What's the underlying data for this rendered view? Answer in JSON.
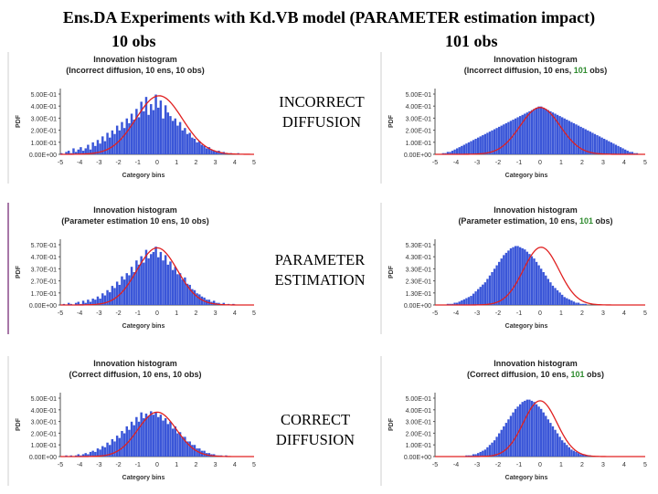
{
  "slide": {
    "title": "Ens.DA Experiments with Kd.VB model (PARAMETER estimation impact)",
    "left_column": "10 obs",
    "right_column": "101 obs"
  },
  "rows": [
    {
      "label_line1": "INCORRECT",
      "label_line2": "DIFFUSION"
    },
    {
      "label_line1": "PARAMETER",
      "label_line2": "ESTIMATION"
    },
    {
      "label_line1": "CORRECT",
      "label_line2": "DIFFUSION"
    }
  ],
  "colors": {
    "bar": "#3a56d8",
    "curve": "#e02020",
    "highlight_green": "#2e8b2e",
    "axis": "#555555"
  },
  "chart_data": [
    {
      "id": "p1",
      "type": "bar",
      "title": "Innovation histogram",
      "subtitle_parts": [
        "(Incorrect diffusion, 10 ens, 10 obs)"
      ],
      "xlabel": "Category bins",
      "ylabel": "PDF",
      "xticks": [
        "-5",
        "-4",
        "-3",
        "-2",
        "-1",
        "0",
        "1",
        "2",
        "3",
        "4",
        "5"
      ],
      "yticks": [
        "0.00E+00",
        "1.00E-01",
        "2.00E-01",
        "3.00E-01",
        "4.00E-01",
        "5.00E-01"
      ],
      "ylim": [
        0,
        0.55
      ],
      "xlim": [
        -5,
        5
      ],
      "curve": {
        "mean": 0.1,
        "sd": 1.2
      },
      "n_bars": 80,
      "seed": 11,
      "values": [
        0.01,
        0.0,
        0.02,
        0.03,
        0.01,
        0.05,
        0.02,
        0.04,
        0.06,
        0.03,
        0.05,
        0.08,
        0.04,
        0.1,
        0.07,
        0.12,
        0.09,
        0.15,
        0.11,
        0.18,
        0.14,
        0.2,
        0.17,
        0.24,
        0.2,
        0.27,
        0.22,
        0.3,
        0.26,
        0.34,
        0.29,
        0.38,
        0.31,
        0.44,
        0.36,
        0.48,
        0.33,
        0.42,
        0.37,
        0.5,
        0.39,
        0.45,
        0.3,
        0.41,
        0.35,
        0.32,
        0.28,
        0.3,
        0.24,
        0.27,
        0.2,
        0.22,
        0.17,
        0.18,
        0.14,
        0.13,
        0.1,
        0.11,
        0.08,
        0.07,
        0.05,
        0.06,
        0.04,
        0.03,
        0.02,
        0.03,
        0.01,
        0.02,
        0.01,
        0.0,
        0.01,
        0.0,
        0.0,
        0.01,
        0.0,
        0.0,
        0.0,
        0.0,
        0.0,
        0.0
      ]
    },
    {
      "id": "p2",
      "type": "bar",
      "title": "Innovation histogram",
      "subtitle_parts": [
        "(Incorrect diffusion, 10 ens, ",
        "101",
        " obs)"
      ],
      "xlabel": "Category bins",
      "ylabel": "PDF",
      "xticks": [
        "-5",
        "-4",
        "-3",
        "-2",
        "-1",
        "0",
        "1",
        "2",
        "3",
        "4",
        "5"
      ],
      "yticks": [
        "0.00E+00",
        "1.00E-01",
        "2.00E-01",
        "3.00E-01",
        "4.00E-01",
        "5.00E-01"
      ],
      "ylim": [
        0,
        0.55
      ],
      "xlim": [
        -5,
        5
      ],
      "curve": {
        "mean": 0.0,
        "sd": 0.95
      },
      "n_bars": 90,
      "seed": 23,
      "values": [
        0.0,
        0.0,
        0.0,
        0.01,
        0.01,
        0.02,
        0.02,
        0.03,
        0.04,
        0.05,
        0.06,
        0.07,
        0.08,
        0.09,
        0.1,
        0.11,
        0.12,
        0.13,
        0.14,
        0.15,
        0.16,
        0.17,
        0.18,
        0.19,
        0.2,
        0.21,
        0.22,
        0.23,
        0.24,
        0.25,
        0.26,
        0.27,
        0.28,
        0.29,
        0.3,
        0.31,
        0.32,
        0.33,
        0.34,
        0.35,
        0.36,
        0.37,
        0.38,
        0.39,
        0.4,
        0.4,
        0.39,
        0.38,
        0.37,
        0.36,
        0.35,
        0.34,
        0.33,
        0.32,
        0.31,
        0.3,
        0.29,
        0.28,
        0.27,
        0.26,
        0.25,
        0.24,
        0.23,
        0.22,
        0.21,
        0.2,
        0.19,
        0.18,
        0.17,
        0.16,
        0.15,
        0.14,
        0.13,
        0.12,
        0.11,
        0.1,
        0.09,
        0.08,
        0.07,
        0.06,
        0.05,
        0.04,
        0.03,
        0.02,
        0.02,
        0.01,
        0.01,
        0.0,
        0.0,
        0.0
      ]
    },
    {
      "id": "p3",
      "type": "bar",
      "title": "Innovation histogram",
      "subtitle_parts": [
        "(Parameter estimation 10 ens, 10 obs)"
      ],
      "xlabel": "Category bins",
      "ylabel": "PDF",
      "xticks": [
        "-5",
        "-4",
        "-3",
        "-2",
        "-1",
        "0",
        "1",
        "2",
        "3",
        "4",
        "5"
      ],
      "yticks": [
        "0.00E+00",
        "1.70E-01",
        "2.70E-01",
        "3.70E-01",
        "4.70E-01",
        "5.70E-01"
      ],
      "ylim": [
        0,
        0.62
      ],
      "xlim": [
        -5,
        5
      ],
      "curve": {
        "mean": 0.0,
        "sd": 1.05
      },
      "n_bars": 80,
      "seed": 37,
      "values": [
        0.0,
        0.01,
        0.0,
        0.02,
        0.01,
        0.0,
        0.02,
        0.03,
        0.01,
        0.04,
        0.02,
        0.05,
        0.03,
        0.06,
        0.05,
        0.08,
        0.06,
        0.11,
        0.09,
        0.14,
        0.12,
        0.18,
        0.16,
        0.22,
        0.19,
        0.27,
        0.24,
        0.3,
        0.28,
        0.36,
        0.31,
        0.42,
        0.38,
        0.46,
        0.4,
        0.52,
        0.44,
        0.48,
        0.5,
        0.55,
        0.45,
        0.5,
        0.42,
        0.47,
        0.38,
        0.41,
        0.33,
        0.36,
        0.29,
        0.3,
        0.24,
        0.26,
        0.2,
        0.19,
        0.15,
        0.14,
        0.11,
        0.1,
        0.08,
        0.07,
        0.05,
        0.05,
        0.03,
        0.04,
        0.02,
        0.02,
        0.01,
        0.02,
        0.0,
        0.01,
        0.0,
        0.01,
        0.0,
        0.0,
        0.0,
        0.0,
        0.0,
        0.0,
        0.0,
        0.0
      ]
    },
    {
      "id": "p4",
      "type": "bar",
      "title": "Innovation histogram",
      "subtitle_parts": [
        "(Parameter estimation",
        ", 10 ens, ",
        "101",
        " obs)"
      ],
      "xlabel": "Category bins",
      "ylabel": "PDF",
      "xticks": [
        "-5",
        "-4",
        "-3",
        "-2",
        "-1",
        "0",
        "1",
        "2",
        "3",
        "4",
        "5"
      ],
      "yticks": [
        "0.00E+00",
        "1.30E-01",
        "2.30E-01",
        "3.30E-01",
        "4.30E-01",
        "5.30E-01"
      ],
      "ylim": [
        0,
        0.58
      ],
      "xlim": [
        -5,
        5
      ],
      "curve": {
        "mean": 0.05,
        "sd": 0.85
      },
      "n_bars": 90,
      "seed": 51,
      "values": [
        0.0,
        0.0,
        0.0,
        0.0,
        0.0,
        0.01,
        0.01,
        0.01,
        0.02,
        0.02,
        0.03,
        0.04,
        0.05,
        0.06,
        0.07,
        0.08,
        0.1,
        0.12,
        0.14,
        0.16,
        0.18,
        0.2,
        0.23,
        0.26,
        0.29,
        0.32,
        0.35,
        0.38,
        0.41,
        0.44,
        0.46,
        0.48,
        0.5,
        0.51,
        0.52,
        0.52,
        0.51,
        0.5,
        0.49,
        0.47,
        0.45,
        0.43,
        0.41,
        0.38,
        0.35,
        0.32,
        0.29,
        0.26,
        0.23,
        0.2,
        0.17,
        0.15,
        0.13,
        0.11,
        0.09,
        0.07,
        0.06,
        0.05,
        0.04,
        0.03,
        0.02,
        0.02,
        0.01,
        0.01,
        0.01,
        0.0,
        0.0,
        0.0,
        0.0,
        0.0,
        0.0,
        0.0,
        0.0,
        0.0,
        0.0,
        0.0,
        0.0,
        0.0,
        0.0,
        0.0,
        0.0,
        0.0,
        0.0,
        0.0,
        0.0,
        0.0,
        0.0,
        0.0,
        0.0,
        0.0
      ]
    },
    {
      "id": "p5",
      "type": "bar",
      "title": "Innovation histogram",
      "subtitle_parts": [
        "(Correct diffusion, 10 ens, 10 obs)"
      ],
      "xlabel": "Category bins",
      "ylabel": "PDF",
      "xticks": [
        "-5",
        "-4",
        "-3",
        "-2",
        "-1",
        "0",
        "1",
        "2",
        "3",
        "4",
        "5"
      ],
      "yticks": [
        "0.00E+00",
        "1.00E-01",
        "2.00E-01",
        "3.00E-01",
        "4.00E-01",
        "5.00E-01"
      ],
      "ylim": [
        0,
        0.55
      ],
      "xlim": [
        -5,
        5
      ],
      "curve": {
        "mean": 0.0,
        "sd": 1.0
      },
      "n_bars": 80,
      "seed": 67,
      "values": [
        0.0,
        0.0,
        0.01,
        0.0,
        0.01,
        0.0,
        0.01,
        0.02,
        0.01,
        0.02,
        0.03,
        0.02,
        0.04,
        0.05,
        0.04,
        0.07,
        0.06,
        0.09,
        0.08,
        0.12,
        0.1,
        0.15,
        0.13,
        0.18,
        0.16,
        0.22,
        0.2,
        0.26,
        0.23,
        0.3,
        0.27,
        0.34,
        0.3,
        0.38,
        0.33,
        0.37,
        0.35,
        0.39,
        0.36,
        0.38,
        0.34,
        0.36,
        0.31,
        0.33,
        0.28,
        0.3,
        0.24,
        0.26,
        0.2,
        0.21,
        0.17,
        0.17,
        0.13,
        0.13,
        0.1,
        0.1,
        0.07,
        0.07,
        0.05,
        0.05,
        0.03,
        0.03,
        0.02,
        0.02,
        0.01,
        0.01,
        0.01,
        0.0,
        0.01,
        0.0,
        0.0,
        0.0,
        0.0,
        0.0,
        0.0,
        0.0,
        0.0,
        0.0,
        0.0,
        0.0
      ]
    },
    {
      "id": "p6",
      "type": "bar",
      "title": "Innovation histogram",
      "subtitle_parts": [
        "(Correct diffusion, 10 ens, ",
        "101",
        " obs)"
      ],
      "xlabel": "Category bins",
      "ylabel": "PDF",
      "xticks": [
        "-5",
        "-4",
        "-3",
        "-2",
        "-1",
        "0",
        "1",
        "2",
        "3",
        "4",
        "5"
      ],
      "yticks": [
        "0.00E+00",
        "1.00E-01",
        "2.00E-01",
        "3.00E-01",
        "4.00E-01",
        "5.00E-01"
      ],
      "ylim": [
        0,
        0.55
      ],
      "xlim": [
        -5,
        5
      ],
      "curve": {
        "mean": 0.0,
        "sd": 0.8
      },
      "n_bars": 90,
      "seed": 79,
      "values": [
        0.0,
        0.0,
        0.0,
        0.0,
        0.0,
        0.0,
        0.0,
        0.0,
        0.0,
        0.0,
        0.0,
        0.0,
        0.0,
        0.01,
        0.01,
        0.01,
        0.02,
        0.02,
        0.03,
        0.04,
        0.05,
        0.06,
        0.08,
        0.1,
        0.12,
        0.14,
        0.17,
        0.2,
        0.23,
        0.26,
        0.29,
        0.32,
        0.35,
        0.38,
        0.41,
        0.43,
        0.45,
        0.47,
        0.48,
        0.49,
        0.49,
        0.48,
        0.47,
        0.45,
        0.43,
        0.41,
        0.38,
        0.35,
        0.32,
        0.29,
        0.26,
        0.23,
        0.2,
        0.17,
        0.14,
        0.12,
        0.1,
        0.08,
        0.06,
        0.05,
        0.04,
        0.03,
        0.02,
        0.02,
        0.01,
        0.01,
        0.01,
        0.0,
        0.0,
        0.0,
        0.0,
        0.0,
        0.0,
        0.0,
        0.0,
        0.0,
        0.0,
        0.0,
        0.0,
        0.0,
        0.0,
        0.0,
        0.0,
        0.0,
        0.0,
        0.0,
        0.0,
        0.0,
        0.0,
        0.0
      ]
    }
  ]
}
